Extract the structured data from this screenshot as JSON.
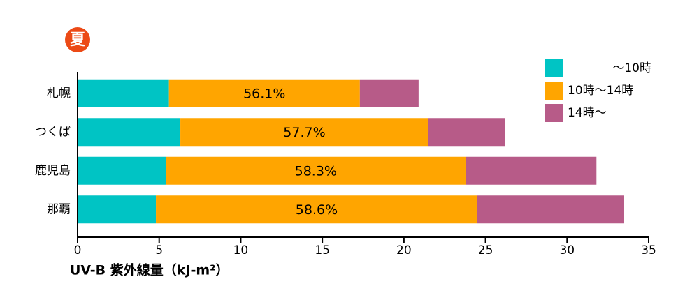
{
  "chart_data": {
    "type": "stacked-bar-horizontal",
    "badge": "夏",
    "categories": [
      "札幌",
      "つくば",
      "鹿児島",
      "那覇"
    ],
    "series": [
      {
        "name": "〜10時",
        "color": "#00c4c4",
        "values": [
          5.6,
          6.3,
          5.4,
          4.8
        ]
      },
      {
        "name": "10時〜14時",
        "color": "#ffa500",
        "values": [
          11.7,
          15.2,
          18.4,
          19.7
        ]
      },
      {
        "name": "14時〜",
        "color": "#b75b88",
        "values": [
          3.6,
          4.7,
          8.0,
          9.0
        ]
      }
    ],
    "share_labels": [
      "56.1%",
      "57.7%",
      "58.3%",
      "58.6%"
    ],
    "xlabel": "UV-B 紫外線量（kJ-m²）",
    "xlim": [
      0,
      35
    ],
    "xticks": [
      0,
      5,
      10,
      15,
      20,
      25,
      30,
      35
    ],
    "legend": "upper right"
  }
}
